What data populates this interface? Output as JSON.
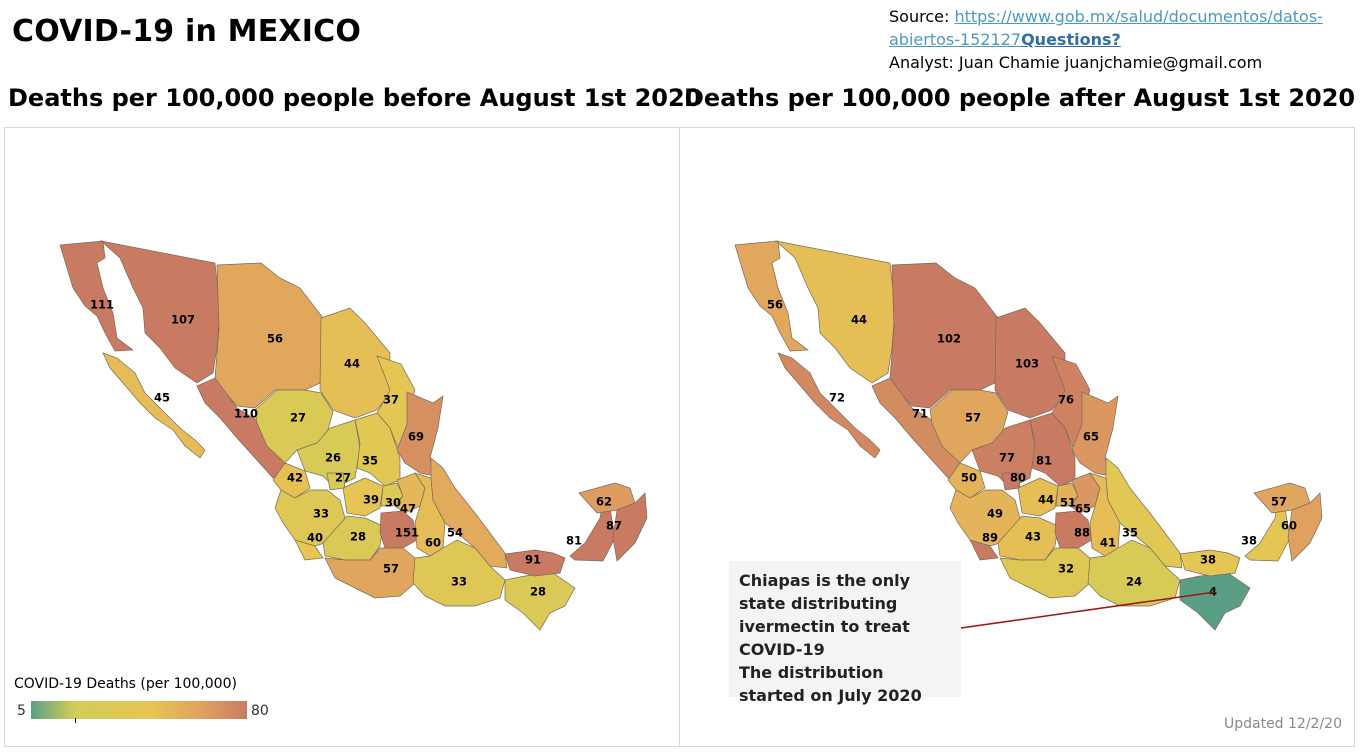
{
  "title": "COVID-19 in MEXICO",
  "source": {
    "prefix": "Source: ",
    "url": "https://www.gob.mx/salud/documentos/datos-abiertos-152127",
    "questions": "Questions?",
    "analyst": "Analyst: Juan Chamie juanjchamie@gmail.com"
  },
  "left_map": {
    "subtitle": "Deaths per 100,000 people before August 1st 2020",
    "values": {
      "bc": "111",
      "son": "107",
      "chih": "56",
      "coah": "44",
      "nl": "37",
      "tamps": "69",
      "bcs": "45",
      "sin": "110",
      "dgo": "27",
      "zac": "26",
      "slp": "35",
      "nay": "42",
      "ags": "27",
      "jal": "33",
      "gto": "39",
      "qro": "30",
      "hgo": "47",
      "col": "40",
      "mich": "28",
      "mex": "151",
      "tlax": "60",
      "ver": "54",
      "gro": "57",
      "oax": "33",
      "chis": "28",
      "tab": "91",
      "camp": "81",
      "yuc": "62",
      "qroo": "87"
    }
  },
  "right_map": {
    "subtitle": "Deaths per 100,000 people after August 1st 2020",
    "values": {
      "bc": "56",
      "son": "44",
      "chih": "102",
      "coah": "103",
      "nl": "76",
      "tamps": "65",
      "bcs": "72",
      "sin": "71",
      "dgo": "57",
      "zac": "77",
      "slp": "81",
      "ags": "80",
      "nay": "50",
      "jal": "49",
      "gto": "44",
      "qro": "51",
      "hgo": "65",
      "col": "89",
      "mich": "43",
      "mex": "88",
      "tlax": "41",
      "ver": "35",
      "gro": "32",
      "oax": "24",
      "tab": "38",
      "camp": "38",
      "yuc": "57",
      "qroo": "60",
      "chis": "4"
    },
    "annotation": "Chiapas is the only state distributing ivermectin to treat COVID-19\nThe distribution started on July 2020",
    "updated": "Updated 12/2/20"
  },
  "legend": {
    "title": "COVID-19 Deaths (per 100,000)",
    "min": "5",
    "max": "80",
    "colors": [
      "#5a9f85",
      "#d2cc58",
      "#e6c553",
      "#e0a060",
      "#c97a63"
    ]
  }
}
